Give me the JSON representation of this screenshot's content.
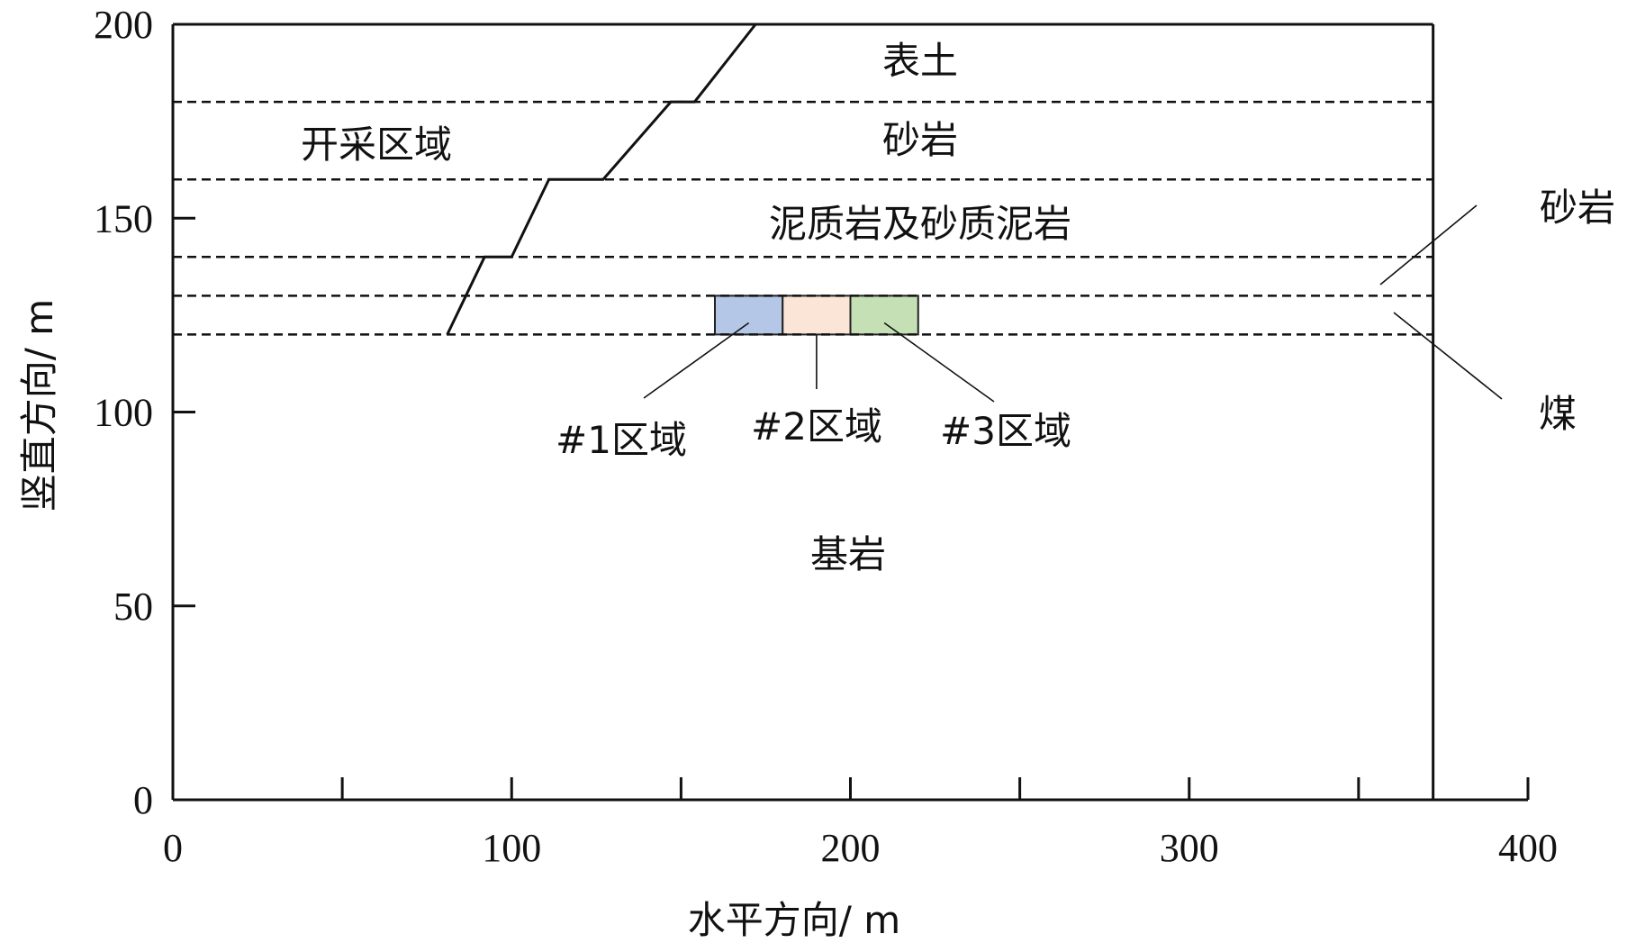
{
  "chart_data": {
    "type": "diagram",
    "xlabel": "水平方向/ m",
    "ylabel": "竖直方向/ m",
    "xlim": [
      0,
      400
    ],
    "ylim": [
      0,
      200
    ],
    "x_ticks": [
      0,
      100,
      200,
      300,
      400
    ],
    "y_ticks": [
      0,
      50,
      100,
      150,
      200
    ],
    "plot_x_max": 372,
    "minor_x_ticks": [
      50,
      150,
      250,
      350
    ],
    "layer_boundaries": [
      180,
      160,
      140,
      130,
      120
    ],
    "layers": [
      {
        "name": "表土",
        "y_range": [
          180,
          200
        ]
      },
      {
        "name": "砂岩",
        "y_range": [
          160,
          180
        ]
      },
      {
        "name": "泥质岩及砂质泥岩",
        "y_range": [
          140,
          160
        ]
      },
      {
        "name": "砂岩",
        "y_range": [
          130,
          140
        ]
      },
      {
        "name": "煤",
        "y_range": [
          120,
          130
        ]
      },
      {
        "name": "基岩",
        "y_range": [
          0,
          120
        ]
      }
    ],
    "mining_area_label": "开采区域",
    "excavation_boundary": [
      [
        81,
        120
      ],
      [
        92,
        140
      ],
      [
        100,
        140
      ],
      [
        111,
        160
      ],
      [
        127,
        160
      ],
      [
        147,
        180
      ],
      [
        154,
        180
      ],
      [
        172,
        200
      ]
    ],
    "regions": [
      {
        "name": "#1区域",
        "x_range": [
          160,
          180
        ],
        "y_range": [
          120,
          130
        ],
        "color": "#b4c7e7"
      },
      {
        "name": "#2区域",
        "x_range": [
          180,
          200
        ],
        "y_range": [
          120,
          130
        ],
        "color": "#fbe5d6"
      },
      {
        "name": "#3区域",
        "x_range": [
          200,
          220
        ],
        "y_range": [
          120,
          130
        ],
        "color": "#c5e0b4"
      }
    ]
  }
}
